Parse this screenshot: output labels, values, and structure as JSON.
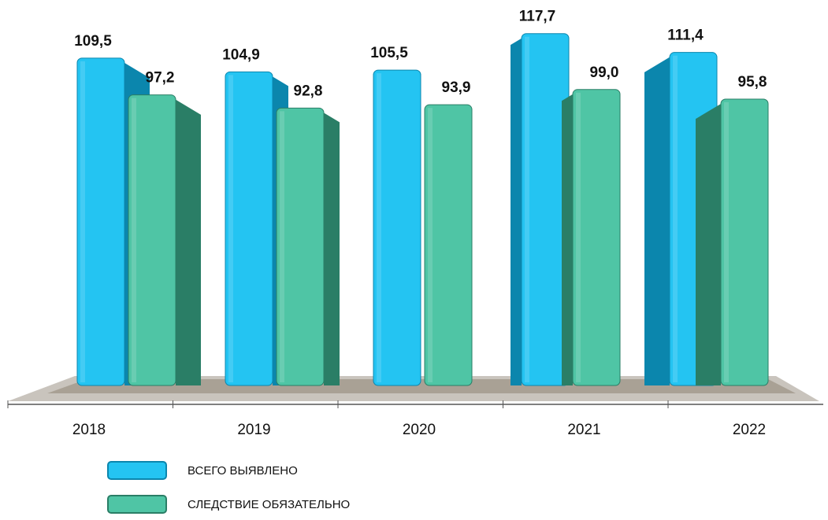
{
  "chart_data": {
    "type": "bar",
    "categories": [
      "2018",
      "2019",
      "2020",
      "2021",
      "2022"
    ],
    "series": [
      {
        "name": "ВСЕГО ВЫЯВЛЕНО",
        "color": "#24c4f2",
        "values": [
          109.5,
          104.9,
          105.5,
          117.7,
          111.4
        ],
        "value_labels": [
          "109,5",
          "104,9",
          "105,5",
          "117,7",
          "111,4"
        ]
      },
      {
        "name": "СЛЕДСТВИЕ ОБЯЗАТЕЛЬНО",
        "color": "#4fc5a5",
        "values": [
          97.2,
          92.8,
          93.9,
          99.0,
          95.8
        ],
        "value_labels": [
          "97,2",
          "92,8",
          "93,9",
          "99,0",
          "95,8"
        ]
      }
    ]
  }
}
